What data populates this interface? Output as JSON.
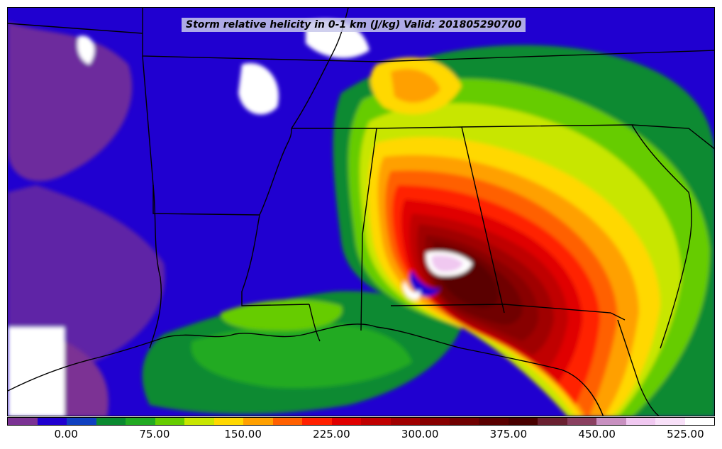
{
  "map": {
    "title": "Storm relative helicity in 0-1 km (J/kg) Valid: 201805290700",
    "field": "Storm relative helicity in 0-1 km",
    "units": "J/kg",
    "valid_time": "201805290700"
  },
  "colorbar": {
    "colors": [
      "#7b3294",
      "#2000d0",
      "#1040c0",
      "#0a8a30",
      "#22aa22",
      "#66cc00",
      "#c8e600",
      "#ffd800",
      "#ffa000",
      "#ff6000",
      "#ff2000",
      "#e00000",
      "#c00000",
      "#a00000",
      "#880000",
      "#700000",
      "#5a0000",
      "#480000",
      "#6a2030",
      "#8a4060",
      "#c890c0",
      "#f0c8f0",
      "#f8e0f8",
      "#ffffff"
    ],
    "tick_labels": [
      "0.00",
      "75.00",
      "150.00",
      "225.00",
      "300.00",
      "375.00",
      "450.00",
      "525.00"
    ]
  }
}
